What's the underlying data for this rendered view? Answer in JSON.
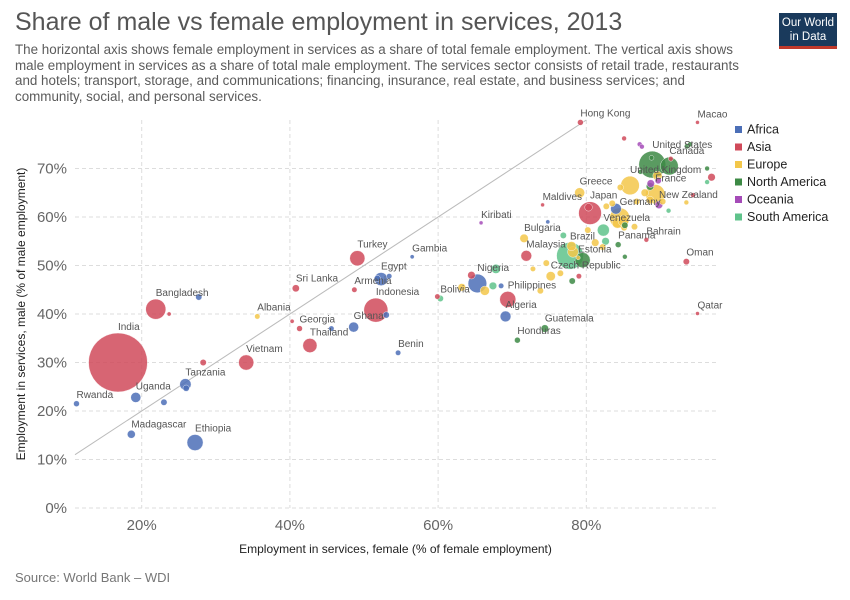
{
  "header": {
    "title": "Share of male vs female employment in services, 2013",
    "subtitle": "The horizontal axis shows female employment in services as a share of total female employment. The vertical axis shows male employment in services as a share of total male employment. The services sector consists of retail trade, restaurants and hotels; transport, storage, and communications; financing, insurance, real estate, and business services; and community, social, and personal services."
  },
  "logo": {
    "line1": "Our World",
    "line2": "in Data"
  },
  "footer": {
    "source": "Source: World Bank – WDI"
  },
  "colors": {
    "Africa": "#4c6fb7",
    "Asia": "#d04a5a",
    "Europe": "#f3c74a",
    "North America": "#3d8a45",
    "Oceania": "#a54bb8",
    "South America": "#5fc38b"
  },
  "chart_data": {
    "type": "scatter",
    "title": "Share of male vs female employment in services, 2013",
    "xlabel": "Employment in services, female (% of female employment)",
    "ylabel": "Employment in services, male (% of male employment)",
    "xlim": [
      11,
      97.5
    ],
    "ylim": [
      0,
      80
    ],
    "xticks": [
      "20%",
      "40%",
      "60%",
      "80%"
    ],
    "xtick_values": [
      20,
      40,
      60,
      80
    ],
    "yticks": [
      "0%",
      "10%",
      "20%",
      "30%",
      "40%",
      "50%",
      "60%",
      "70%"
    ],
    "ytick_values": [
      0,
      10,
      20,
      30,
      40,
      50,
      60,
      70
    ],
    "grid": true,
    "reference_line": "y = x",
    "legend_position": "right",
    "legend": [
      "Africa",
      "Asia",
      "Europe",
      "North America",
      "Oceania",
      "South America"
    ],
    "points": [
      {
        "name": "India",
        "region": "Asia",
        "x": 16.8,
        "y": 30,
        "size": 1200,
        "label": "India"
      },
      {
        "name": "Rwanda",
        "region": "Africa",
        "x": 11.2,
        "y": 21.5,
        "size": 12,
        "label": "Rwanda"
      },
      {
        "name": "Uganda",
        "region": "Africa",
        "x": 19.2,
        "y": 22.8,
        "size": 35,
        "label": "Uganda"
      },
      {
        "name": "Madagascar",
        "region": "Africa",
        "x": 18.6,
        "y": 15.2,
        "size": 22,
        "label": "Madagascar"
      },
      {
        "name": "Ethiopia",
        "region": "Africa",
        "x": 27.2,
        "y": 13.5,
        "size": 90,
        "label": "Ethiopia"
      },
      {
        "name": "Tanzania",
        "region": "Africa",
        "x": 25.9,
        "y": 25.5,
        "size": 45,
        "label": "Tanzania"
      },
      {
        "name": "Bangladesh",
        "region": "Asia",
        "x": 21.9,
        "y": 41,
        "size": 140,
        "label": "Bangladesh"
      },
      {
        "name": "Vietnam",
        "region": "Asia",
        "x": 34.1,
        "y": 30,
        "size": 80,
        "label": "Vietnam"
      },
      {
        "name": "Albania",
        "region": "Europe",
        "x": 35.6,
        "y": 39.5,
        "size": 10,
        "label": "Albania"
      },
      {
        "name": "Sri Lanka",
        "region": "Asia",
        "x": 40.8,
        "y": 45.3,
        "size": 18,
        "label": "Sri Lanka"
      },
      {
        "name": "Georgia",
        "region": "Asia",
        "x": 41.3,
        "y": 37,
        "size": 12,
        "label": "Georgia"
      },
      {
        "name": "Thailand",
        "region": "Asia",
        "x": 42.7,
        "y": 33.5,
        "size": 70,
        "label": "Thailand"
      },
      {
        "name": "Turkey",
        "region": "Asia",
        "x": 49.1,
        "y": 51.5,
        "size": 80,
        "label": "Turkey"
      },
      {
        "name": "Gambia",
        "region": "Africa",
        "x": 56.5,
        "y": 51.8,
        "size": 6,
        "label": "Gambia"
      },
      {
        "name": "Egypt",
        "region": "Africa",
        "x": 52.3,
        "y": 47.2,
        "size": 60,
        "label": "Egypt"
      },
      {
        "name": "Armenia",
        "region": "Asia",
        "x": 48.7,
        "y": 45,
        "size": 10,
        "label": "Armenia"
      },
      {
        "name": "Indonesia",
        "region": "Asia",
        "x": 51.6,
        "y": 40.8,
        "size": 200,
        "label": "Indonesia"
      },
      {
        "name": "Ghana",
        "region": "Africa",
        "x": 48.6,
        "y": 37.3,
        "size": 35,
        "label": "Ghana"
      },
      {
        "name": "Benin",
        "region": "Africa",
        "x": 54.6,
        "y": 32,
        "size": 10,
        "label": "Benin"
      },
      {
        "name": "Bolivia",
        "region": "South America",
        "x": 60.3,
        "y": 43.2,
        "size": 14,
        "label": "Bolivia"
      },
      {
        "name": "Nigeria",
        "region": "Africa",
        "x": 65.3,
        "y": 46.3,
        "size": 120,
        "label": "Nigeria"
      },
      {
        "name": "Philippines",
        "region": "Asia",
        "x": 69.4,
        "y": 43,
        "size": 90,
        "label": "Philippines"
      },
      {
        "name": "Algeria",
        "region": "Africa",
        "x": 69.1,
        "y": 39.5,
        "size": 40,
        "label": "Algeria"
      },
      {
        "name": "Honduras",
        "region": "North America",
        "x": 70.7,
        "y": 34.6,
        "size": 12,
        "label": "Honduras"
      },
      {
        "name": "Guatemala",
        "region": "North America",
        "x": 74.4,
        "y": 37,
        "size": 20,
        "label": "Guatemala"
      },
      {
        "name": "Kiribati",
        "region": "Oceania",
        "x": 65.8,
        "y": 58.8,
        "size": 4,
        "label": "Kiribati"
      },
      {
        "name": "Bulgaria",
        "region": "Europe",
        "x": 71.6,
        "y": 55.6,
        "size": 25,
        "label": "Bulgaria"
      },
      {
        "name": "Malaysia",
        "region": "Asia",
        "x": 71.9,
        "y": 52,
        "size": 40,
        "label": "Malaysia"
      },
      {
        "name": "Maldives",
        "region": "Asia",
        "x": 74.1,
        "y": 62.5,
        "size": 4,
        "label": "Maldives"
      },
      {
        "name": "Czech Republic",
        "region": "Europe",
        "x": 75.2,
        "y": 47.8,
        "size": 30,
        "label": "Czech Republic"
      },
      {
        "name": "Brazil",
        "region": "South America",
        "x": 77.8,
        "y": 52,
        "size": 250,
        "label": "Brazil"
      },
      {
        "name": "Estonia",
        "region": "Europe",
        "x": 78.9,
        "y": 51.6,
        "size": 6,
        "label": "Estonia"
      },
      {
        "name": "Greece",
        "region": "Europe",
        "x": 79.1,
        "y": 65,
        "size": 35,
        "label": "Greece"
      },
      {
        "name": "Japan",
        "region": "Asia",
        "x": 80.5,
        "y": 60.8,
        "size": 180,
        "label": "Japan"
      },
      {
        "name": "Hong Kong",
        "region": "Asia",
        "x": 79.2,
        "y": 79.5,
        "size": 12,
        "label": "Hong Kong"
      },
      {
        "name": "Venezuela",
        "region": "South America",
        "x": 82.3,
        "y": 57.3,
        "size": 50,
        "label": "Venezuela"
      },
      {
        "name": "Panama",
        "region": "North America",
        "x": 84.3,
        "y": 54.3,
        "size": 12,
        "label": "Panama"
      },
      {
        "name": "Germany",
        "region": "Europe",
        "x": 84.5,
        "y": 59.8,
        "size": 140,
        "label": "Germany"
      },
      {
        "name": "United Kingdom",
        "region": "Europe",
        "x": 85.9,
        "y": 66.5,
        "size": 120,
        "label": "United Kingdom"
      },
      {
        "name": "United States",
        "region": "North America",
        "x": 88.9,
        "y": 70.8,
        "size": 250,
        "label": "United States"
      },
      {
        "name": "France",
        "region": "Europe",
        "x": 89.3,
        "y": 64.7,
        "size": 130,
        "label": "France"
      },
      {
        "name": "Canada",
        "region": "North America",
        "x": 91.2,
        "y": 70.5,
        "size": 110,
        "label": "Canada"
      },
      {
        "name": "New Zealand",
        "region": "Oceania",
        "x": 89.8,
        "y": 62.5,
        "size": 20,
        "label": "New Zealand"
      },
      {
        "name": "Bahrain",
        "region": "Asia",
        "x": 88.1,
        "y": 55.3,
        "size": 8,
        "label": "Bahrain"
      },
      {
        "name": "Macao",
        "region": "Asia",
        "x": 95,
        "y": 79.5,
        "size": 4,
        "label": "Macao"
      },
      {
        "name": "Oman",
        "region": "Asia",
        "x": 93.5,
        "y": 50.8,
        "size": 14,
        "label": "Oman"
      },
      {
        "name": "Qatar",
        "region": "Asia",
        "x": 95,
        "y": 40.1,
        "size": 4,
        "label": "Qatar"
      },
      {
        "name": "",
        "region": "Africa",
        "x": 27.7,
        "y": 43.5,
        "size": 14,
        "label": ""
      },
      {
        "name": "",
        "region": "Asia",
        "x": 23.7,
        "y": 40,
        "size": 6,
        "label": ""
      },
      {
        "name": "",
        "region": "Asia",
        "x": 28.3,
        "y": 30,
        "size": 14,
        "label": ""
      },
      {
        "name": "",
        "region": "Africa",
        "x": 26,
        "y": 24.7,
        "size": 14,
        "label": ""
      },
      {
        "name": "",
        "region": "Africa",
        "x": 23,
        "y": 21.8,
        "size": 14,
        "label": ""
      },
      {
        "name": "",
        "region": "Asia",
        "x": 40.3,
        "y": 38.5,
        "size": 6,
        "label": ""
      },
      {
        "name": "",
        "region": "Africa",
        "x": 45.6,
        "y": 37,
        "size": 10,
        "label": ""
      },
      {
        "name": "",
        "region": "Africa",
        "x": 53,
        "y": 39.8,
        "size": 14,
        "label": ""
      },
      {
        "name": "",
        "region": "Africa",
        "x": 51.8,
        "y": 47.3,
        "size": 14,
        "label": ""
      },
      {
        "name": "",
        "region": "Africa",
        "x": 53.4,
        "y": 47.8,
        "size": 10,
        "label": ""
      },
      {
        "name": "",
        "region": "Asia",
        "x": 59.9,
        "y": 43.6,
        "size": 10,
        "label": ""
      },
      {
        "name": "",
        "region": "Europe",
        "x": 63.2,
        "y": 45.5,
        "size": 20,
        "label": ""
      },
      {
        "name": "",
        "region": "Asia",
        "x": 64.5,
        "y": 48,
        "size": 20,
        "label": ""
      },
      {
        "name": "",
        "region": "South America",
        "x": 67.8,
        "y": 49.3,
        "size": 30,
        "label": ""
      },
      {
        "name": "",
        "region": "Europe",
        "x": 66.3,
        "y": 44.8,
        "size": 30,
        "label": ""
      },
      {
        "name": "",
        "region": "Africa",
        "x": 68.5,
        "y": 45.8,
        "size": 10,
        "label": ""
      },
      {
        "name": "",
        "region": "South America",
        "x": 67.4,
        "y": 45.8,
        "size": 20,
        "label": ""
      },
      {
        "name": "",
        "region": "Europe",
        "x": 72.8,
        "y": 49.3,
        "size": 10,
        "label": ""
      },
      {
        "name": "",
        "region": "Europe",
        "x": 73.8,
        "y": 44.8,
        "size": 14,
        "label": ""
      },
      {
        "name": "",
        "region": "Europe",
        "x": 74.6,
        "y": 50.5,
        "size": 14,
        "label": ""
      },
      {
        "name": "",
        "region": "Africa",
        "x": 74.8,
        "y": 59,
        "size": 6,
        "label": ""
      },
      {
        "name": "",
        "region": "Europe",
        "x": 76.5,
        "y": 48.4,
        "size": 14,
        "label": ""
      },
      {
        "name": "",
        "region": "South America",
        "x": 76.9,
        "y": 56.2,
        "size": 14,
        "label": ""
      },
      {
        "name": "",
        "region": "Europe",
        "x": 78,
        "y": 54,
        "size": 30,
        "label": ""
      },
      {
        "name": "",
        "region": "North America",
        "x": 78.1,
        "y": 46.8,
        "size": 14,
        "label": ""
      },
      {
        "name": "",
        "region": "Europe",
        "x": 78.2,
        "y": 52.8,
        "size": 40,
        "label": ""
      },
      {
        "name": "",
        "region": "Asia",
        "x": 79,
        "y": 47.8,
        "size": 10,
        "label": ""
      },
      {
        "name": "",
        "region": "North America",
        "x": 79.5,
        "y": 51.1,
        "size": 80,
        "label": ""
      },
      {
        "name": "",
        "region": "Europe",
        "x": 80.2,
        "y": 57.3,
        "size": 14,
        "label": ""
      },
      {
        "name": "",
        "region": "Asia",
        "x": 80.3,
        "y": 62,
        "size": 20,
        "label": ""
      },
      {
        "name": "",
        "region": "Europe",
        "x": 81.2,
        "y": 54.7,
        "size": 20,
        "label": ""
      },
      {
        "name": "",
        "region": "Europe",
        "x": 82.2,
        "y": 53.8,
        "size": 14,
        "label": ""
      },
      {
        "name": "",
        "region": "Europe",
        "x": 82.7,
        "y": 62.2,
        "size": 14,
        "label": ""
      },
      {
        "name": "",
        "region": "South America",
        "x": 82.6,
        "y": 55,
        "size": 20,
        "label": ""
      },
      {
        "name": "",
        "region": "Europe",
        "x": 83.5,
        "y": 62.8,
        "size": 14,
        "label": ""
      },
      {
        "name": "",
        "region": "Africa",
        "x": 84,
        "y": 61.7,
        "size": 40,
        "label": ""
      },
      {
        "name": "",
        "region": "Europe",
        "x": 84.2,
        "y": 58.8,
        "size": 40,
        "label": ""
      },
      {
        "name": "",
        "region": "Europe",
        "x": 85,
        "y": 59.2,
        "size": 40,
        "label": ""
      },
      {
        "name": "",
        "region": "Europe",
        "x": 85.1,
        "y": 57.8,
        "size": 14,
        "label": ""
      },
      {
        "name": "",
        "region": "North America",
        "x": 85.2,
        "y": 58.3,
        "size": 14,
        "label": ""
      },
      {
        "name": "",
        "region": "Europe",
        "x": 84.6,
        "y": 66.1,
        "size": 14,
        "label": ""
      },
      {
        "name": "",
        "region": "Asia",
        "x": 85.1,
        "y": 76.2,
        "size": 8,
        "label": ""
      },
      {
        "name": "",
        "region": "North America",
        "x": 85.2,
        "y": 51.8,
        "size": 8,
        "label": ""
      },
      {
        "name": "",
        "region": "Europe",
        "x": 86.5,
        "y": 58,
        "size": 14,
        "label": ""
      },
      {
        "name": "",
        "region": "Europe",
        "x": 86.8,
        "y": 63.2,
        "size": 14,
        "label": ""
      },
      {
        "name": "",
        "region": "North America",
        "x": 87.3,
        "y": 69.3,
        "size": 8,
        "label": ""
      },
      {
        "name": "",
        "region": "Oceania",
        "x": 87.2,
        "y": 75,
        "size": 8,
        "label": ""
      },
      {
        "name": "",
        "region": "Oceania",
        "x": 87.5,
        "y": 74.5,
        "size": 8,
        "label": ""
      },
      {
        "name": "",
        "region": "Europe",
        "x": 87.9,
        "y": 65,
        "size": 20,
        "label": ""
      },
      {
        "name": "",
        "region": "Europe",
        "x": 88.6,
        "y": 63.5,
        "size": 20,
        "label": ""
      },
      {
        "name": "",
        "region": "North America",
        "x": 88.6,
        "y": 66.3,
        "size": 20,
        "label": ""
      },
      {
        "name": "",
        "region": "Oceania",
        "x": 88.7,
        "y": 66.9,
        "size": 20,
        "label": ""
      },
      {
        "name": "",
        "region": "North America",
        "x": 88.8,
        "y": 72.2,
        "size": 8,
        "label": ""
      },
      {
        "name": "",
        "region": "Europe",
        "x": 89.6,
        "y": 68.5,
        "size": 30,
        "label": ""
      },
      {
        "name": "",
        "region": "Oceania",
        "x": 89.7,
        "y": 67.5,
        "size": 14,
        "label": ""
      },
      {
        "name": "",
        "region": "Europe",
        "x": 90.3,
        "y": 63.2,
        "size": 14,
        "label": ""
      },
      {
        "name": "",
        "region": "South America",
        "x": 91.1,
        "y": 61.3,
        "size": 8,
        "label": ""
      },
      {
        "name": "",
        "region": "Asia",
        "x": 91.4,
        "y": 72,
        "size": 8,
        "label": ""
      },
      {
        "name": "",
        "region": "North America",
        "x": 93.6,
        "y": 74.6,
        "size": 10,
        "label": ""
      },
      {
        "name": "",
        "region": "North America",
        "x": 94,
        "y": 75,
        "size": 8,
        "label": ""
      },
      {
        "name": "",
        "region": "North America",
        "x": 96.3,
        "y": 70,
        "size": 8,
        "label": ""
      },
      {
        "name": "",
        "region": "Asia",
        "x": 96.9,
        "y": 68.2,
        "size": 20,
        "label": ""
      },
      {
        "name": "",
        "region": "South America",
        "x": 96.3,
        "y": 67.2,
        "size": 8,
        "label": ""
      },
      {
        "name": "",
        "region": "Asia",
        "x": 94.4,
        "y": 64.5,
        "size": 8,
        "label": ""
      },
      {
        "name": "",
        "region": "Europe",
        "x": 93.5,
        "y": 63,
        "size": 8,
        "label": ""
      }
    ]
  }
}
